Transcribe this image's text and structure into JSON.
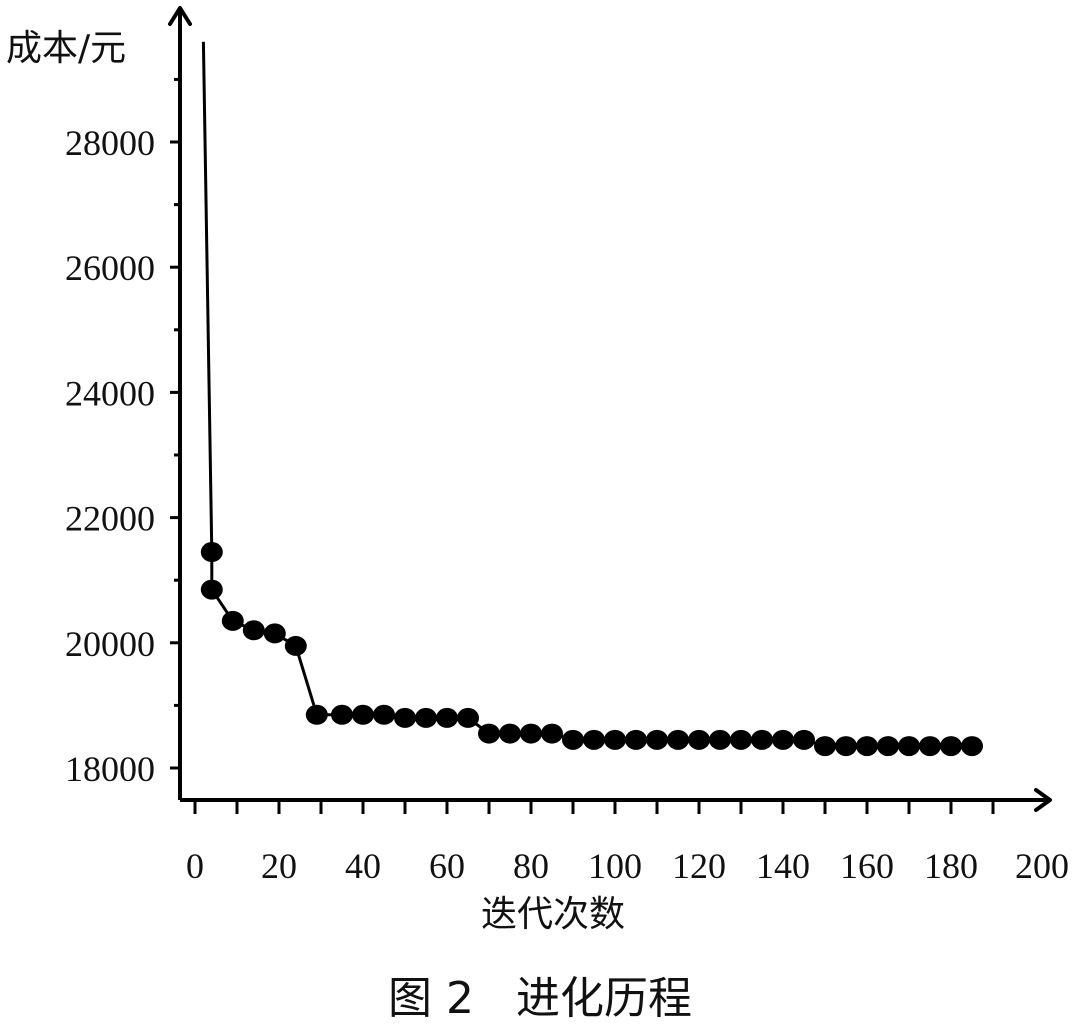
{
  "chart_data": {
    "type": "line",
    "title": "",
    "caption": "图 2   进化历程",
    "xlabel": "迭代次数",
    "ylabel": "成本/元",
    "xlim": [
      0,
      200
    ],
    "ylim": [
      17500,
      29800
    ],
    "x_ticks": [
      "0",
      "20",
      "40",
      "60",
      "80",
      "100",
      "120",
      "140",
      "160",
      "180",
      "200"
    ],
    "x_tick_values": [
      0,
      20,
      40,
      60,
      80,
      100,
      120,
      140,
      160,
      180,
      200
    ],
    "y_ticks": [
      "18000",
      "20000",
      "22000",
      "24000",
      "26000",
      "28000"
    ],
    "y_tick_values": [
      18000,
      20000,
      22000,
      24000,
      26000,
      28000
    ],
    "grid": false,
    "line_start": {
      "x": 2,
      "y": 29600
    },
    "series": [
      {
        "marker": "filled-circle",
        "color": "#000000",
        "x": [
          4,
          4,
          9,
          14,
          19,
          24,
          29,
          35,
          40,
          45,
          50,
          55,
          60,
          65,
          70,
          75,
          80,
          85,
          90,
          95,
          100,
          105,
          110,
          115,
          120,
          125,
          130,
          135,
          140,
          145,
          150,
          155,
          160,
          165,
          170,
          175,
          180,
          185
        ],
        "y": [
          21450,
          20850,
          20350,
          20200,
          20150,
          19950,
          18850,
          18850,
          18850,
          18850,
          18800,
          18800,
          18800,
          18800,
          18550,
          18550,
          18550,
          18550,
          18450,
          18450,
          18450,
          18450,
          18450,
          18450,
          18450,
          18450,
          18450,
          18450,
          18450,
          18450,
          18350,
          18350,
          18350,
          18350,
          18350,
          18350,
          18350,
          18350
        ]
      }
    ]
  }
}
